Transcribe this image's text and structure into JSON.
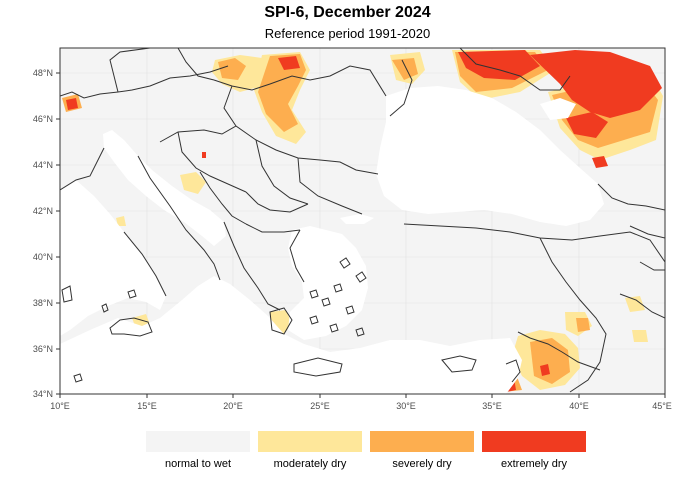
{
  "title": "SPI-6, December 2024",
  "subtitle": "Reference period 1991-2020",
  "axes": {
    "lon_ticks": [
      "10°E",
      "15°E",
      "20°E",
      "25°E",
      "30°E",
      "35°E",
      "40°E",
      "45°E"
    ],
    "lat_ticks": [
      "48°N",
      "46°N",
      "44°N",
      "42°N",
      "40°N",
      "38°N",
      "36°N",
      "34°N"
    ]
  },
  "legend": [
    {
      "label": "normal to wet",
      "color": "#f4f4f4"
    },
    {
      "label": "moderately dry",
      "color": "#fee79a"
    },
    {
      "label": "severely dry",
      "color": "#fdae4f"
    },
    {
      "label": "extremely dry",
      "color": "#f03b20"
    }
  ],
  "colors": {
    "background": "#f4f4f4",
    "sea": "#ffffff",
    "border": "#333333",
    "grid": "#e2e2e2"
  }
}
